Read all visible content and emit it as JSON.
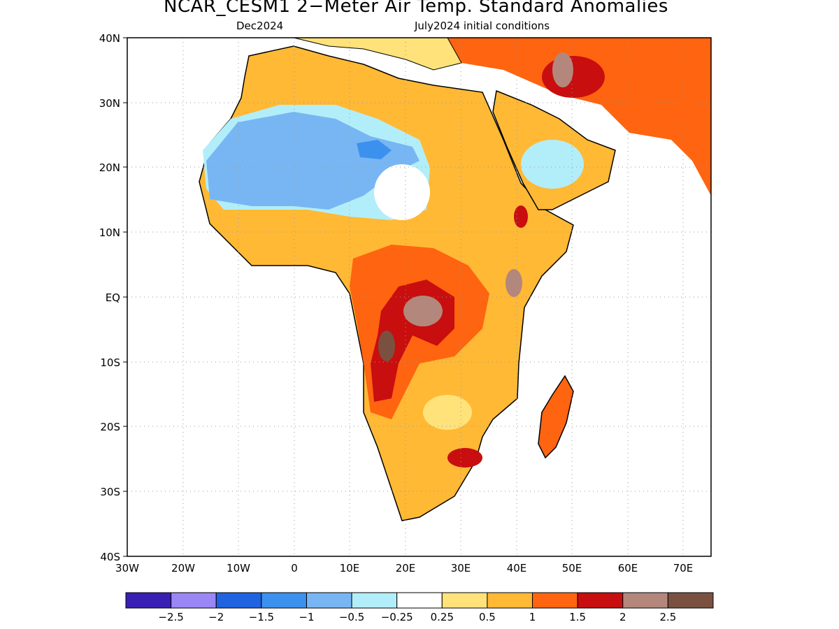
{
  "title": "NCAR_CESM1 2−Meter Air Temp. Standard Anomalies",
  "subtitle_left": "Dec2024",
  "subtitle_right": "July2024 initial conditions",
  "lat_labels": [
    "40N",
    "30N",
    "20N",
    "10N",
    "EQ",
    "10S",
    "20S",
    "30S",
    "40S"
  ],
  "lon_labels": [
    "30W",
    "20W",
    "10W",
    "0",
    "10E",
    "20E",
    "30E",
    "40E",
    "50E",
    "60E",
    "70E"
  ],
  "legend": {
    "colors": [
      "#3a1fb4",
      "#9a86f5",
      "#1f63e0",
      "#3c91ee",
      "#78b6f3",
      "#b2eefa",
      "#ffffff",
      "#ffe27a",
      "#ffb935",
      "#ff6410",
      "#c80e0e",
      "#b4877c",
      "#7a5141"
    ],
    "labels": [
      "−2.5",
      "−2",
      "−1.5",
      "−1",
      "−0.5",
      "−0.25",
      "0.25",
      "0.5",
      "1",
      "1.5",
      "2",
      "2.5"
    ]
  }
}
